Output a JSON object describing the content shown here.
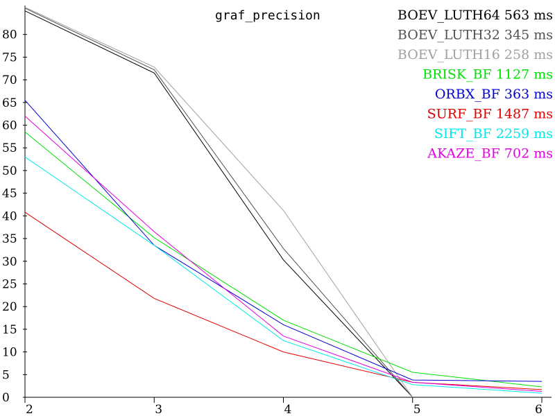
{
  "chart_data": {
    "type": "line",
    "title": "graf_precision",
    "x": [
      2,
      3,
      4,
      5,
      6
    ],
    "xlim": [
      2,
      6
    ],
    "ylim": [
      0,
      85
    ],
    "x_ticks": [
      "2",
      "3",
      "4",
      "5",
      "6"
    ],
    "y_ticks": [
      "0",
      "5",
      "10",
      "15",
      "20",
      "25",
      "30",
      "35",
      "40",
      "45",
      "50",
      "55",
      "60",
      "65",
      "70",
      "75",
      "80"
    ],
    "grid": false,
    "legend_position": "top-right",
    "series": [
      {
        "name": "BOEV_LUTH64",
        "time": "563",
        "unit": "ms",
        "color": "#000000",
        "values": [
          85.2,
          71.5,
          30.3,
          0.0,
          null
        ]
      },
      {
        "name": "BOEV_LUTH32",
        "time": "345",
        "unit": "ms",
        "color": "#505050",
        "values": [
          85.8,
          72.2,
          32.8,
          0.0,
          null
        ]
      },
      {
        "name": "BOEV_LUTH16",
        "time": "258",
        "unit": "ms",
        "color": "#a0a0a0",
        "values": [
          86.0,
          72.8,
          41.2,
          0.0,
          null
        ]
      },
      {
        "name": "BRISK_BF",
        "time": "1127",
        "unit": "ms",
        "color": "#00e000",
        "values": [
          58.5,
          35.2,
          17.0,
          5.5,
          2.3
        ]
      },
      {
        "name": "ORBX_BF",
        "time": "363",
        "unit": "ms",
        "color": "#0000d0",
        "values": [
          65.5,
          33.5,
          16.0,
          3.8,
          3.5
        ]
      },
      {
        "name": "SURF_BF",
        "time": "1487",
        "unit": "ms",
        "color": "#e00000",
        "values": [
          40.8,
          21.8,
          10.0,
          3.3,
          1.7
        ]
      },
      {
        "name": "SIFT_BF",
        "time": "2259",
        "unit": "ms",
        "color": "#00e8e8",
        "values": [
          53.0,
          33.5,
          12.5,
          2.8,
          0.9
        ]
      },
      {
        "name": "AKAZE_BF",
        "time": "702",
        "unit": "ms",
        "color": "#e000e0",
        "values": [
          62.0,
          36.5,
          13.5,
          3.3,
          1.3
        ]
      }
    ]
  }
}
